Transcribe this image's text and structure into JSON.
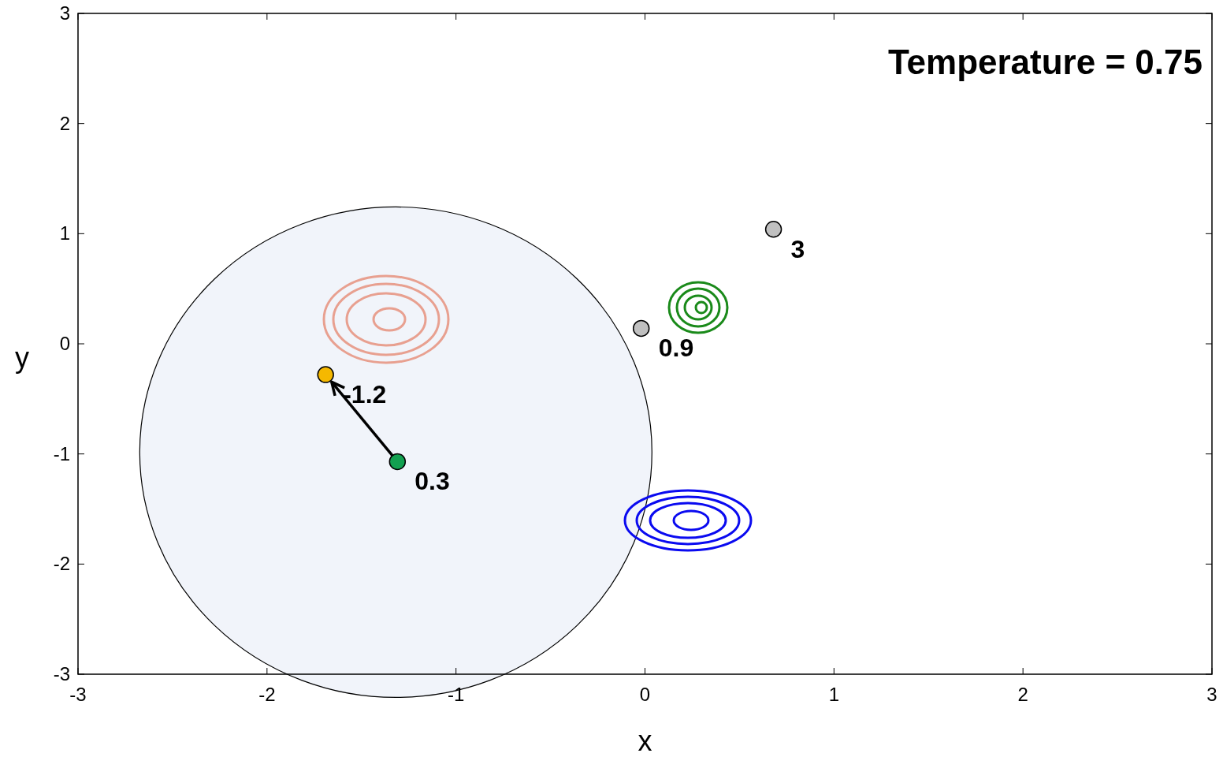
{
  "chart_data": {
    "type": "scatter",
    "xlabel": "x",
    "ylabel": "y",
    "xlim": [
      -3,
      3
    ],
    "ylim": [
      -3,
      3
    ],
    "xticks": [
      -3,
      -2,
      -1,
      0,
      1,
      2,
      3
    ],
    "yticks": [
      -3,
      -2,
      -1,
      0,
      1,
      2,
      3
    ],
    "grid": false,
    "annotations": [
      "Temperature = 0.75",
      {
        "text": "-1.2",
        "x": -1.69,
        "y": -0.28
      },
      {
        "text": "0.3",
        "x": -1.31,
        "y": -1.07
      },
      {
        "text": "0.9",
        "x": -0.02,
        "y": 0.14
      },
      {
        "text": "3",
        "x": 0.68,
        "y": 1.04
      }
    ],
    "series": [
      {
        "marker": "circle",
        "colors": [
          "#f5b800",
          "#12a050"
        ],
        "x": [
          -1.69,
          -1.31
        ],
        "values": [
          -0.28,
          -1.07
        ]
      },
      {
        "marker": "circle",
        "colors": [
          "#c0c0c0",
          "#c0c0c0"
        ],
        "x": [
          -0.02,
          0.68
        ],
        "values": [
          0.14,
          1.04
        ]
      }
    ]
  }
}
